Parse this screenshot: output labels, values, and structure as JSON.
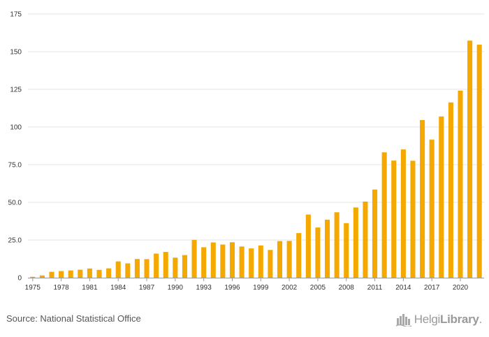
{
  "chart_data": {
    "type": "bar",
    "title": "",
    "xlabel": "",
    "ylabel": "",
    "ylim": [
      0,
      175
    ],
    "y_ticks": [
      "0",
      "25.0",
      "50.0",
      "75.0",
      "100",
      "125",
      "150",
      "175"
    ],
    "x_tick_labels": [
      "1975",
      "1978",
      "1981",
      "1984",
      "1987",
      "1990",
      "1993",
      "1996",
      "1999",
      "2002",
      "2005",
      "2008",
      "2011",
      "2014",
      "2017",
      "2020"
    ],
    "grid": true,
    "legend": "none",
    "bar_color": "#F5A800",
    "categories": [
      "1975",
      "1976",
      "1977",
      "1978",
      "1979",
      "1980",
      "1981",
      "1982",
      "1983",
      "1984",
      "1985",
      "1986",
      "1987",
      "1988",
      "1989",
      "1990",
      "1991",
      "1992",
      "1993",
      "1994",
      "1995",
      "1996",
      "1997",
      "1998",
      "1999",
      "2000",
      "2001",
      "2002",
      "2003",
      "2004",
      "2005",
      "2006",
      "2007",
      "2008",
      "2009",
      "2010",
      "2011",
      "2012",
      "2013",
      "2014",
      "2015",
      "2016",
      "2017",
      "2018",
      "2019",
      "2020",
      "2021",
      "2022"
    ],
    "values": [
      0.6,
      1.5,
      3.9,
      4.4,
      4.8,
      5.3,
      6.1,
      5.2,
      6.2,
      10.8,
      9.5,
      12.4,
      12.3,
      16.0,
      17.1,
      13.3,
      15.0,
      25.1,
      20.2,
      23.4,
      22.0,
      23.5,
      20.7,
      19.4,
      21.4,
      18.4,
      24.3,
      24.4,
      29.6,
      41.9,
      33.3,
      38.5,
      43.4,
      36.2,
      46.6,
      50.5,
      58.5,
      83.2,
      77.7,
      85.1,
      77.6,
      104.6,
      91.6,
      107.0,
      116.3,
      124.1,
      157.3,
      154.6
    ]
  },
  "footer": {
    "source": "Source: National Statistical Office",
    "brand_regular": "Helgi",
    "brand_bold": "Library",
    "brand_suffix": "."
  },
  "colors": {
    "bar": "#F5A800",
    "grid": "#e6e6e6",
    "axis": "#999999",
    "text": "#333333"
  }
}
